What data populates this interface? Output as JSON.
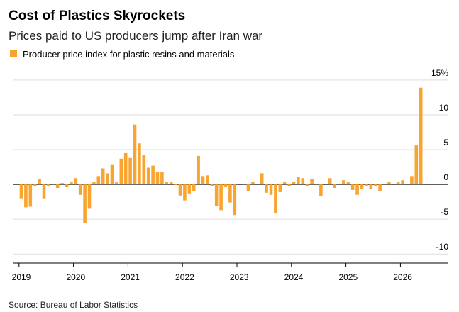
{
  "chart_data": {
    "type": "bar",
    "title": "Cost of Plastics Skyrockets",
    "subtitle": "Prices paid to US producers jump after Iran war",
    "source": "Source: Bureau of Labor Statistics",
    "series": [
      {
        "name": "Producer price index for plastic resins and materials",
        "color": "#f7a530",
        "values": [
          -2.0,
          -3.3,
          -3.2,
          -0.2,
          0.8,
          -2.0,
          -0.2,
          0.1,
          -0.5,
          0.2,
          -0.4,
          0.3,
          0.9,
          -1.5,
          -5.5,
          -3.5,
          0.3,
          1.2,
          2.3,
          1.6,
          2.9,
          0.3,
          3.7,
          4.5,
          3.8,
          8.6,
          5.9,
          4.2,
          2.4,
          2.7,
          1.8,
          1.8,
          0.3,
          0.3,
          -0.1,
          -1.6,
          -2.3,
          -1.3,
          -1.0,
          4.1,
          1.2,
          1.3,
          -0.2,
          -3.1,
          -3.7,
          -0.4,
          -2.6,
          -4.4,
          0.0,
          0.1,
          -1.0,
          0.4,
          0.0,
          1.6,
          -1.2,
          -1.5,
          -4.1,
          -1.1,
          0.3,
          -0.3,
          0.4,
          1.1,
          0.9,
          -0.3,
          0.8,
          0.1,
          -1.7,
          0.0,
          0.9,
          -0.5,
          0.1,
          0.6,
          0.3,
          -0.8,
          -1.5,
          -0.6,
          -0.3,
          -0.7,
          -0.2,
          -1.0,
          0.1,
          0.3,
          0.0,
          0.3,
          0.6,
          0.0,
          1.2,
          5.6,
          13.9
        ]
      }
    ],
    "categories": [
      "2019",
      null,
      null,
      null,
      null,
      null,
      null,
      null,
      null,
      null,
      null,
      null,
      "2020",
      null,
      null,
      null,
      null,
      null,
      null,
      null,
      null,
      null,
      null,
      null,
      "2021",
      null,
      null,
      null,
      null,
      null,
      null,
      null,
      null,
      null,
      null,
      null,
      "2022",
      null,
      null,
      null,
      null,
      null,
      null,
      null,
      null,
      null,
      null,
      null,
      "2023",
      null,
      null,
      null,
      null,
      null,
      null,
      null,
      null,
      null,
      null,
      null,
      "2024",
      null,
      null,
      null,
      null,
      null,
      null,
      null,
      null,
      null,
      null,
      null,
      "2025",
      null,
      null,
      null,
      null,
      null,
      null,
      null,
      null,
      null,
      null,
      null,
      "2026",
      null,
      null,
      null,
      null
    ],
    "ylim": [
      -11,
      15.5
    ],
    "yticks": [
      {
        "value": 15,
        "label": "15%"
      },
      10,
      5,
      0,
      -5,
      -10
    ],
    "grid": true
  }
}
